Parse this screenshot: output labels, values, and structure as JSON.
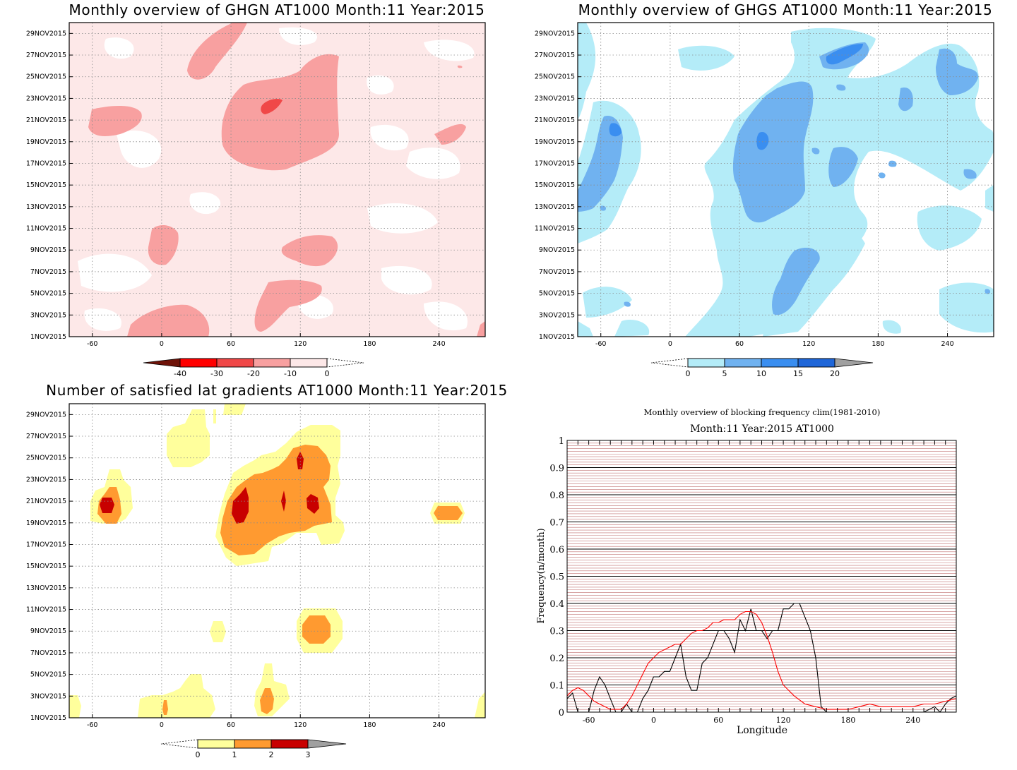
{
  "panels": {
    "ghgn": {
      "title": "Monthly overview of GHGN AT1000 Month:11 Year:2015",
      "colorbar_labels": [
        "-40",
        "-30",
        "-20",
        "-10",
        "0"
      ],
      "colorbar_colors": [
        "#6e1208",
        "#ff0000",
        "#f04848",
        "#f8a0a0",
        "#fde8e8"
      ]
    },
    "ghgs": {
      "title": "Monthly overview of GHGS AT1000 Month:11 Year:2015",
      "colorbar_labels": [
        "0",
        "5",
        "10",
        "15",
        "20"
      ],
      "colorbar_colors": [
        "#b4ecf8",
        "#70b2f0",
        "#3a8ef0",
        "#1f66d8",
        "#a0a0a0"
      ]
    },
    "gradients": {
      "title": "Number of satisfied lat gradients AT1000 Month:11 Year:2015",
      "colorbar_labels": [
        "0",
        "1",
        "2",
        "3"
      ],
      "colorbar_colors": [
        "#ffff9c",
        "#ff9a30",
        "#c80000",
        "#a0a0a0"
      ]
    },
    "blocking": {
      "title1": "Monthly overview of blocking frequency clim(1981-2010)",
      "title2": "Month:11 Year:2015  AT1000"
    }
  },
  "y_date_labels": [
    "1NOV2015",
    "3NOV2015",
    "5NOV2015",
    "7NOV2015",
    "9NOV2015",
    "11NOV2015",
    "13NOV2015",
    "15NOV2015",
    "17NOV2015",
    "19NOV2015",
    "21NOV2015",
    "23NOV2015",
    "25NOV2015",
    "27NOV2015",
    "29NOV2015"
  ],
  "x_lon_labels": [
    "-60",
    "0",
    "60",
    "120",
    "180",
    "240"
  ],
  "chart_data": [
    {
      "type": "heatmap",
      "title": "Monthly overview of GHGN AT1000 Month:11 Year:2015",
      "xlim": [
        -80,
        280
      ],
      "xticks": [
        -60,
        0,
        60,
        120,
        180,
        240
      ],
      "ylabels": [
        "1NOV2015",
        "3NOV2015",
        "5NOV2015",
        "7NOV2015",
        "9NOV2015",
        "11NOV2015",
        "13NOV2015",
        "15NOV2015",
        "17NOV2015",
        "19NOV2015",
        "21NOV2015",
        "23NOV2015",
        "25NOV2015",
        "27NOV2015",
        "29NOV2015"
      ],
      "levels": [
        -40,
        -30,
        -20,
        -10,
        0
      ],
      "grid": true
    },
    {
      "type": "heatmap",
      "title": "Monthly overview of GHGS AT1000 Month:11 Year:2015",
      "xlim": [
        -80,
        280
      ],
      "xticks": [
        -60,
        0,
        60,
        120,
        180,
        240
      ],
      "ylabels": [
        "1NOV2015",
        "3NOV2015",
        "5NOV2015",
        "7NOV2015",
        "9NOV2015",
        "11NOV2015",
        "13NOV2015",
        "15NOV2015",
        "17NOV2015",
        "19NOV2015",
        "21NOV2015",
        "23NOV2015",
        "25NOV2015",
        "27NOV2015",
        "29NOV2015"
      ],
      "levels": [
        0,
        5,
        10,
        15,
        20
      ],
      "grid": true
    },
    {
      "type": "heatmap",
      "title": "Number of satisfied lat gradients AT1000 Month:11 Year:2015",
      "xlim": [
        -80,
        280
      ],
      "xticks": [
        -60,
        0,
        60,
        120,
        180,
        240
      ],
      "ylabels": [
        "1NOV2015",
        "3NOV2015",
        "5NOV2015",
        "7NOV2015",
        "9NOV2015",
        "11NOV2015",
        "13NOV2015",
        "15NOV2015",
        "17NOV2015",
        "19NOV2015",
        "21NOV2015",
        "23NOV2015",
        "25NOV2015",
        "27NOV2015",
        "29NOV2015"
      ],
      "levels": [
        0,
        1,
        2,
        3
      ],
      "grid": true
    },
    {
      "type": "line",
      "title": "Monthly overview of blocking frequency clim(1981-2010)",
      "subtitle": "Month:11 Year:2015  AT1000",
      "xlabel": "Longitude",
      "ylabel": "Frequency(n/month)",
      "xlim": [
        -80,
        280
      ],
      "ylim": [
        0,
        1
      ],
      "xticks": [
        -60,
        0,
        60,
        120,
        180,
        240
      ],
      "yticks": [
        0,
        0.1,
        0.2,
        0.3,
        0.4,
        0.5,
        0.6,
        0.7,
        0.8,
        0.9,
        1
      ],
      "ytick_labels": [
        "0",
        "0.1",
        "0.2",
        "0.3",
        "0.4",
        "0.5",
        "0.6",
        "0.7",
        "0.8",
        "0.9",
        "1"
      ],
      "series": [
        {
          "color": "#000000",
          "x": [
            -80,
            -75,
            -70,
            -65,
            -60,
            -55,
            -50,
            -45,
            -40,
            -35,
            -30,
            -25,
            -20,
            -15,
            -10,
            -5,
            0,
            5,
            10,
            15,
            20,
            25,
            30,
            35,
            40,
            45,
            50,
            55,
            60,
            65,
            70,
            75,
            80,
            85,
            90,
            95,
            100,
            105,
            110,
            115,
            120,
            125,
            130,
            135,
            140,
            145,
            150,
            155,
            160,
            165,
            170,
            180,
            200,
            220,
            240,
            250,
            260,
            265,
            270,
            275,
            280
          ],
          "y": [
            0.05,
            0.07,
            0.0,
            0.0,
            0.0,
            0.08,
            0.13,
            0.1,
            0.05,
            0.0,
            0.0,
            0.03,
            0.0,
            0.0,
            0.05,
            0.08,
            0.13,
            0.13,
            0.15,
            0.15,
            0.2,
            0.25,
            0.13,
            0.08,
            0.08,
            0.18,
            0.2,
            0.25,
            0.3,
            0.3,
            0.27,
            0.22,
            0.34,
            0.3,
            0.38,
            0.3,
            0.3,
            0.27,
            0.3,
            0.3,
            0.38,
            0.38,
            0.4,
            0.4,
            0.35,
            0.3,
            0.2,
            0.02,
            0.0,
            0.0,
            0.0,
            0.0,
            0.0,
            0.0,
            0.0,
            0.0,
            0.02,
            0.0,
            0.03,
            0.05,
            0.06
          ]
        },
        {
          "color": "#ff0000",
          "x": [
            -80,
            -75,
            -70,
            -65,
            -60,
            -55,
            -50,
            -45,
            -40,
            -35,
            -30,
            -25,
            -20,
            -15,
            -10,
            -5,
            0,
            5,
            10,
            15,
            20,
            25,
            30,
            35,
            40,
            45,
            50,
            55,
            60,
            65,
            70,
            75,
            80,
            85,
            90,
            95,
            100,
            105,
            110,
            115,
            120,
            130,
            140,
            150,
            160,
            170,
            180,
            190,
            200,
            210,
            220,
            230,
            240,
            250,
            260,
            270,
            280
          ],
          "y": [
            0.06,
            0.08,
            0.09,
            0.08,
            0.06,
            0.04,
            0.03,
            0.02,
            0.01,
            0.01,
            0.01,
            0.03,
            0.06,
            0.1,
            0.14,
            0.18,
            0.2,
            0.22,
            0.23,
            0.24,
            0.25,
            0.25,
            0.27,
            0.29,
            0.3,
            0.3,
            0.31,
            0.33,
            0.33,
            0.34,
            0.34,
            0.34,
            0.36,
            0.37,
            0.37,
            0.36,
            0.33,
            0.28,
            0.22,
            0.15,
            0.1,
            0.06,
            0.03,
            0.02,
            0.01,
            0.01,
            0.01,
            0.02,
            0.03,
            0.02,
            0.02,
            0.02,
            0.02,
            0.03,
            0.03,
            0.04,
            0.05
          ]
        }
      ],
      "grid": true
    }
  ]
}
